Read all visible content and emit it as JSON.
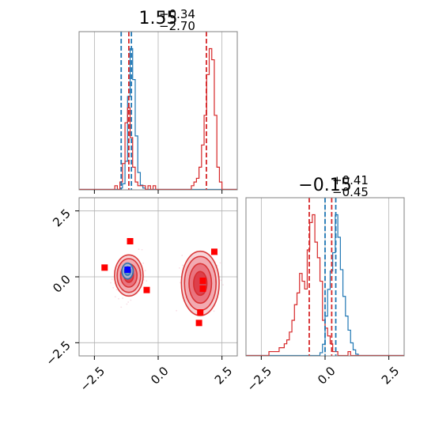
{
  "chart_data": {
    "type": "corner-plot",
    "colors": {
      "red": "#d62728",
      "blue": "#1f77b4",
      "grid": "#b0b0b0",
      "frame": "#808080",
      "marker_red": "#ff0000",
      "marker_blue": "#0000ff"
    },
    "axes_range": {
      "x1": [
        -3.1,
        3.1
      ],
      "x2": [
        -3.1,
        3.1
      ],
      "y2": [
        -3.0,
        3.0
      ]
    },
    "ticks": {
      "x1": {
        "values": [
          -2.5,
          0.0,
          2.5
        ],
        "labels": [
          "−2.5",
          "0.0",
          "2.5"
        ]
      },
      "x2": {
        "values": [
          -2.5,
          0.0,
          2.5
        ],
        "labels": [
          "−2.5",
          "0.0",
          "2.5"
        ]
      },
      "y2": {
        "values": [
          -2.5,
          0.0,
          2.5
        ],
        "labels": [
          "−2.5",
          "0.0",
          "2.5"
        ]
      }
    },
    "titles": [
      {
        "value": "1.55",
        "sup": "+0.34",
        "sub": "−2.70"
      },
      {
        "value": "−0.15",
        "sup": "+0.41",
        "sub": "−0.45"
      }
    ],
    "hist1": {
      "bin_start": -3.1,
      "bin_width": 0.1,
      "red": [
        0,
        0,
        0,
        0,
        0,
        0,
        0,
        0,
        0,
        0,
        0,
        0,
        0,
        0,
        1,
        0,
        2,
        7,
        18,
        22,
        14,
        6,
        2,
        1,
        1,
        1,
        0,
        1,
        0,
        1,
        0,
        0,
        0,
        0,
        0,
        0,
        0,
        0,
        0,
        0,
        0,
        0,
        0,
        0,
        1,
        2,
        3,
        6,
        12,
        20,
        31,
        38,
        35,
        20,
        6,
        2,
        0,
        0,
        0,
        0,
        0,
        0
      ],
      "blue": [
        0,
        0,
        0,
        0,
        0,
        0,
        0,
        0,
        0,
        0,
        0,
        0,
        0,
        0,
        0,
        0,
        1,
        4,
        20,
        66,
        100,
        78,
        38,
        12,
        3,
        1,
        0,
        0,
        0,
        0,
        0,
        0,
        0,
        0,
        0,
        0,
        0,
        0,
        0,
        0,
        0,
        0,
        0,
        0,
        0,
        0,
        0,
        0,
        0,
        0,
        0,
        0,
        0,
        0,
        0,
        0,
        0,
        0,
        0,
        0,
        0,
        0
      ],
      "red_lines": [
        -1.15,
        1.89
      ],
      "blue_lines": [
        -1.45,
        -1.05
      ]
    },
    "hist2": {
      "bin_start": -3.1,
      "bin_width": 0.1,
      "red": [
        0,
        0,
        0,
        0,
        0,
        0,
        0,
        0,
        0,
        1,
        1,
        1,
        1,
        2,
        2,
        3,
        4,
        6,
        9,
        13,
        16,
        21,
        19,
        17,
        27,
        34,
        36,
        29,
        25,
        19,
        9,
        7,
        5,
        3,
        1,
        1,
        0,
        0,
        0,
        0,
        1,
        0,
        0,
        0,
        0,
        0,
        0,
        0,
        0,
        0,
        0,
        0,
        0,
        0,
        0,
        0,
        0,
        0,
        0,
        0,
        0,
        0
      ],
      "blue": [
        0,
        0,
        0,
        0,
        0,
        0,
        0,
        0,
        0,
        0,
        0,
        0,
        0,
        0,
        0,
        0,
        0,
        0,
        0,
        0,
        0,
        0,
        0,
        0,
        0,
        0,
        0,
        0,
        0,
        2,
        8,
        28,
        47,
        60,
        73,
        100,
        84,
        61,
        42,
        28,
        18,
        9,
        4,
        1,
        0,
        0,
        0,
        0,
        0,
        0,
        0,
        0,
        0,
        0,
        0,
        0,
        0,
        0,
        0,
        0,
        0,
        0
      ],
      "red_lines": [
        -0.62,
        0.26
      ],
      "blue_lines": [
        0.0,
        0.42
      ]
    },
    "scatter2d": {
      "red_modes": [
        {
          "cx": -1.15,
          "cy": 0.05,
          "rx": [
            0.18,
            0.32,
            0.46,
            0.56
          ],
          "ry": [
            0.26,
            0.44,
            0.64,
            0.78
          ]
        },
        {
          "cx": 1.65,
          "cy": -0.25,
          "rx": [
            0.26,
            0.44,
            0.62,
            0.74
          ],
          "ry": [
            0.45,
            0.75,
            1.02,
            1.22
          ]
        }
      ],
      "blue_mode": {
        "cx": -1.2,
        "cy": 0.22,
        "rx": [
          0.12,
          0.22
        ],
        "ry": [
          0.16,
          0.3
        ]
      },
      "red_squares": [
        [
          -1.1,
          1.35
        ],
        [
          -2.1,
          0.35
        ],
        [
          -0.45,
          -0.5
        ],
        [
          2.2,
          0.95
        ],
        [
          1.65,
          -1.35
        ],
        [
          1.6,
          -1.75
        ],
        [
          1.75,
          -0.15
        ],
        [
          1.75,
          -0.45
        ]
      ],
      "blue_squares": [
        [
          -1.2,
          0.27
        ]
      ]
    }
  }
}
